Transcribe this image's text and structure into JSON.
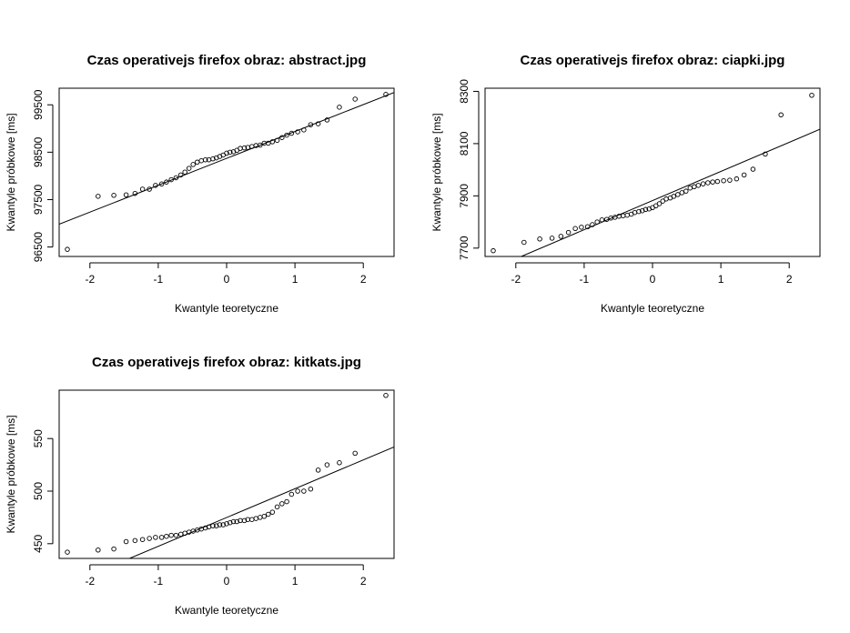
{
  "chart_data": [
    {
      "type": "scatter",
      "title": "Czas operativejs firefox obraz:  abstract.jpg",
      "xlabel": "Kwantyle teoretyczne",
      "ylabel": "Kwantyle próbkowe [ms]",
      "xlim": [
        -2.45,
        2.45
      ],
      "ylim": [
        96300,
        99850
      ],
      "xticks": [
        -2,
        -1,
        0,
        1,
        2
      ],
      "xtick_labels": [
        "-2",
        "-1",
        "0",
        "1",
        "2"
      ],
      "yticks": [
        96500,
        97500,
        98500,
        99500
      ],
      "ytick_labels": [
        "96500",
        "97500",
        "98500",
        "99500"
      ],
      "qqline": {
        "x": [
          -2.45,
          2.45
        ],
        "y": [
          96980,
          99760
        ]
      },
      "x": [
        -2.33,
        -1.88,
        -1.65,
        -1.47,
        -1.34,
        -1.23,
        -1.13,
        -1.04,
        -0.95,
        -0.88,
        -0.81,
        -0.74,
        -0.67,
        -0.61,
        -0.55,
        -0.49,
        -0.43,
        -0.37,
        -0.31,
        -0.26,
        -0.2,
        -0.15,
        -0.1,
        -0.05,
        0.0,
        0.05,
        0.1,
        0.15,
        0.2,
        0.26,
        0.31,
        0.37,
        0.43,
        0.49,
        0.55,
        0.61,
        0.67,
        0.74,
        0.81,
        0.88,
        0.95,
        1.04,
        1.13,
        1.23,
        1.34,
        1.47,
        1.65,
        1.88,
        2.33
      ],
      "y": [
        96450,
        97570,
        97590,
        97600,
        97630,
        97720,
        97720,
        97800,
        97830,
        97870,
        97920,
        97960,
        98020,
        98080,
        98160,
        98240,
        98290,
        98320,
        98340,
        98340,
        98360,
        98380,
        98410,
        98440,
        98480,
        98500,
        98510,
        98540,
        98580,
        98590,
        98600,
        98620,
        98640,
        98650,
        98690,
        98690,
        98720,
        98750,
        98810,
        98860,
        98900,
        98930,
        98970,
        99080,
        99100,
        99180,
        99450,
        99620,
        99720
      ]
    },
    {
      "type": "scatter",
      "title": "Czas operativejs firefox obraz:  ciapki.jpg",
      "xlabel": "Kwantyle teoretyczne",
      "ylabel": "Kwantyle próbkowe [ms]",
      "xlim": [
        -2.45,
        2.45
      ],
      "ylim": [
        7668,
        8312
      ],
      "xticks": [
        -2,
        -1,
        0,
        1,
        2
      ],
      "xtick_labels": [
        "-2",
        "-1",
        "0",
        "1",
        "2"
      ],
      "yticks": [
        7700,
        7900,
        8100,
        8300
      ],
      "ytick_labels": [
        "7700",
        "7900",
        "8100",
        "8300"
      ],
      "qqline": {
        "x": [
          -1.92,
          2.45
        ],
        "y": [
          7668,
          8155
        ]
      },
      "x": [
        -2.33,
        -1.88,
        -1.65,
        -1.47,
        -1.34,
        -1.23,
        -1.13,
        -1.04,
        -0.95,
        -0.88,
        -0.81,
        -0.74,
        -0.67,
        -0.61,
        -0.55,
        -0.49,
        -0.43,
        -0.37,
        -0.31,
        -0.26,
        -0.2,
        -0.15,
        -0.1,
        -0.05,
        0.0,
        0.05,
        0.1,
        0.15,
        0.2,
        0.26,
        0.31,
        0.37,
        0.43,
        0.49,
        0.55,
        0.61,
        0.67,
        0.74,
        0.81,
        0.88,
        0.95,
        1.04,
        1.13,
        1.23,
        1.34,
        1.47,
        1.65,
        1.88,
        2.33
      ],
      "y": [
        7690,
        7722,
        7735,
        7738,
        7745,
        7760,
        7775,
        7780,
        7782,
        7790,
        7800,
        7808,
        7810,
        7815,
        7818,
        7822,
        7824,
        7826,
        7830,
        7836,
        7840,
        7843,
        7848,
        7850,
        7855,
        7862,
        7870,
        7880,
        7888,
        7892,
        7898,
        7905,
        7912,
        7918,
        7930,
        7935,
        7940,
        7946,
        7950,
        7953,
        7955,
        7958,
        7960,
        7965,
        7980,
        8002,
        8060,
        8210,
        8285
      ]
    },
    {
      "type": "scatter",
      "title": "Czas operativejs firefox obraz:  kitkats.jpg",
      "xlabel": "Kwantyle teoretyczne",
      "ylabel": "Kwantyle próbkowe [ms]",
      "xlim": [
        -2.45,
        2.45
      ],
      "ylim": [
        436,
        596
      ],
      "xticks": [
        -2,
        -1,
        0,
        1,
        2
      ],
      "xtick_labels": [
        "-2",
        "-1",
        "0",
        "1",
        "2"
      ],
      "yticks": [
        450,
        500,
        550
      ],
      "ytick_labels": [
        "450",
        "500",
        "550"
      ],
      "qqline": {
        "x": [
          -1.42,
          2.45
        ],
        "y": [
          436,
          542
        ]
      },
      "x": [
        -2.33,
        -1.88,
        -1.65,
        -1.47,
        -1.34,
        -1.23,
        -1.13,
        -1.04,
        -0.95,
        -0.88,
        -0.81,
        -0.74,
        -0.67,
        -0.61,
        -0.55,
        -0.49,
        -0.43,
        -0.37,
        -0.31,
        -0.26,
        -0.2,
        -0.15,
        -0.1,
        -0.05,
        0.0,
        0.05,
        0.1,
        0.15,
        0.2,
        0.26,
        0.31,
        0.37,
        0.43,
        0.49,
        0.55,
        0.61,
        0.67,
        0.74,
        0.81,
        0.88,
        0.95,
        1.04,
        1.13,
        1.23,
        1.34,
        1.47,
        1.65,
        1.88,
        2.33
      ],
      "y": [
        442,
        444,
        445,
        452,
        453,
        454,
        455,
        456,
        456,
        457,
        458,
        458,
        459,
        460,
        461,
        462,
        463,
        464,
        465,
        466,
        467,
        467,
        468,
        468,
        469,
        470,
        471,
        471,
        472,
        472,
        473,
        473,
        474,
        475,
        476,
        478,
        480,
        485,
        488,
        490,
        497,
        500,
        500,
        502,
        520,
        525,
        527,
        536,
        591
      ]
    }
  ]
}
